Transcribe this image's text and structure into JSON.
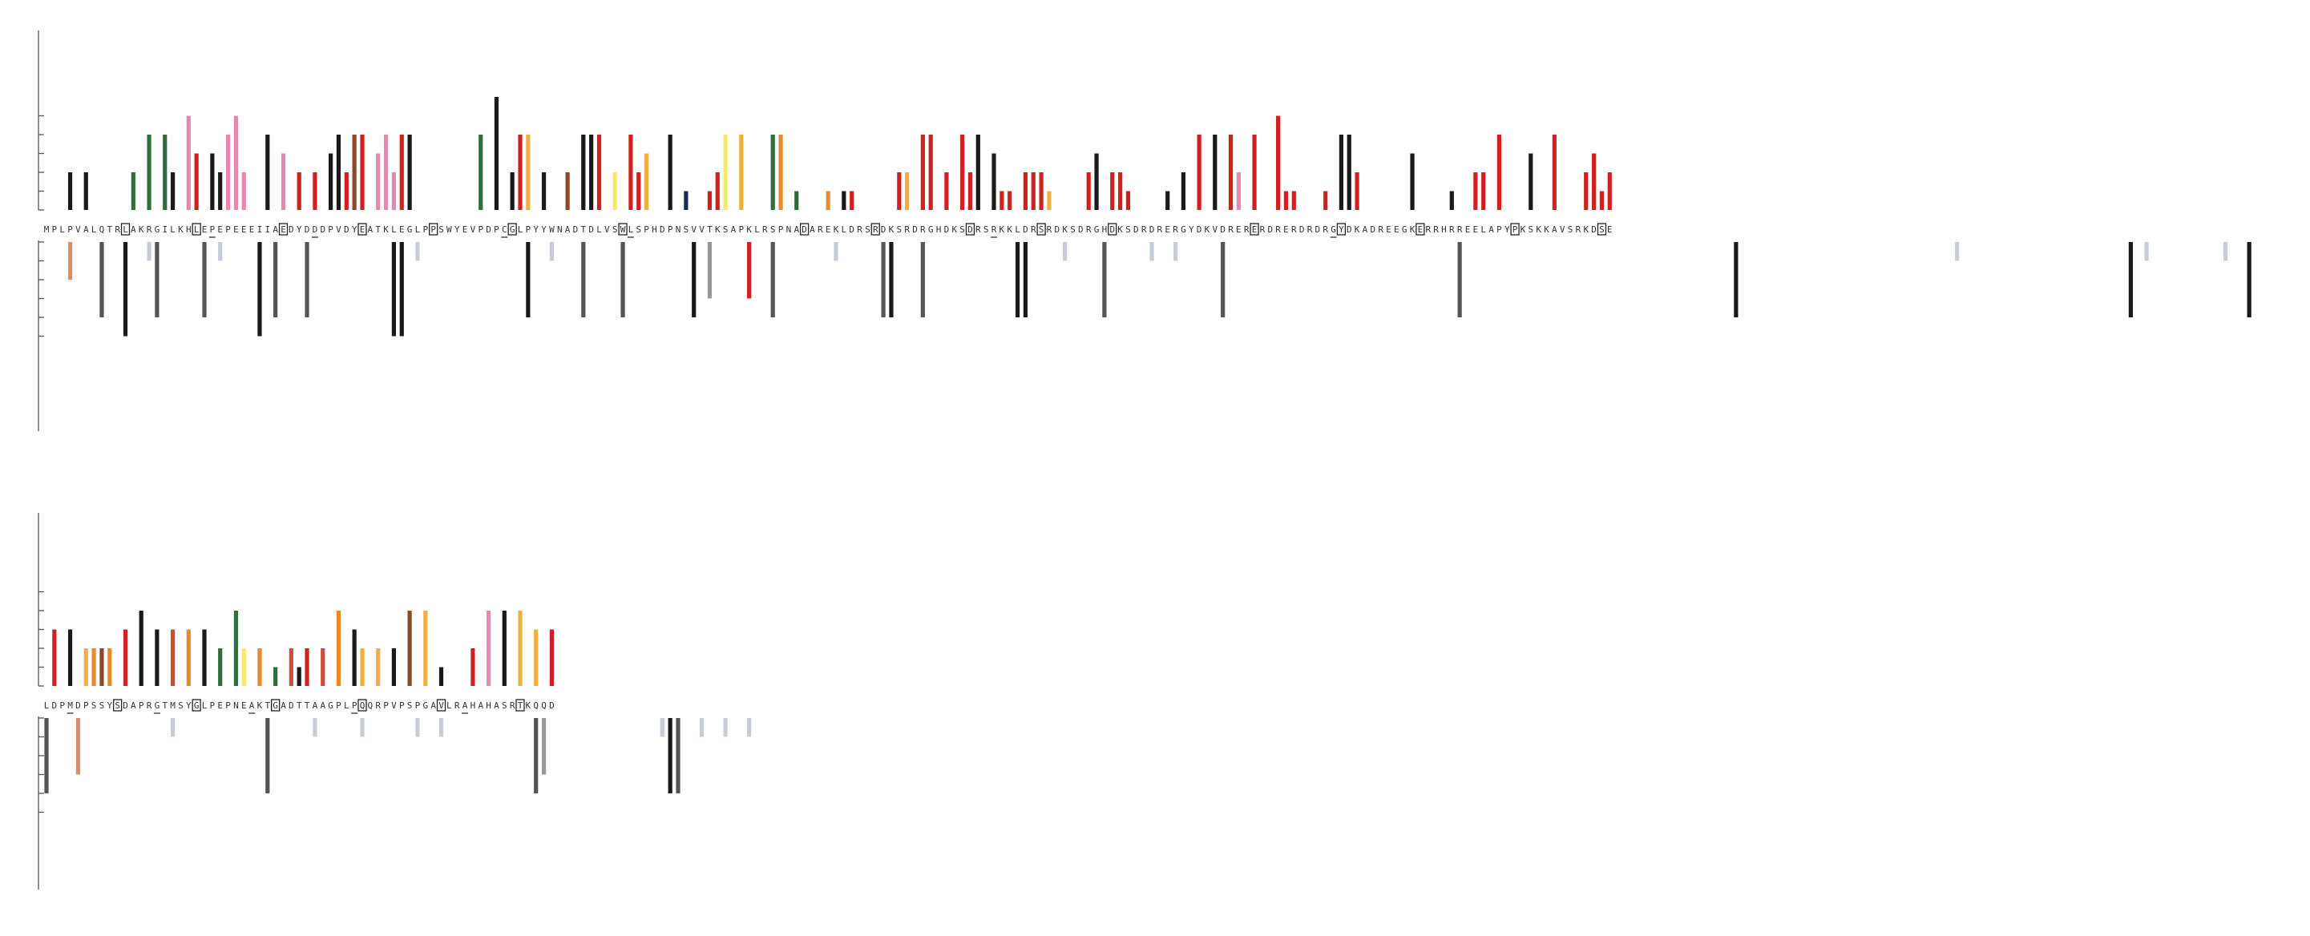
{
  "chart_data": {
    "type": "bar",
    "title": "",
    "xlabel": "",
    "ylabel": "",
    "y_axis_ticks_labeled": false,
    "top_levels": 5,
    "bottom_levels": 5,
    "palette": {
      "K": "#1a1a1a",
      "R": "#d22020",
      "G": "#2e6e3e",
      "P": "#e888b0",
      "Y": "#f3ea6a",
      "O": "#e88a2a",
      "L": "#f0b040",
      "B": "#8a4a2a",
      "N": "#1a2a5a",
      "M": "#d04a3a",
      "D": "#555555",
      "A": "#999999",
      "S": "#c8ccd8",
      "C": "#e08a70",
      "E": "#d02020",
      "X": "#ffffff"
    },
    "rows": [
      {
        "sequence": "MPLPVALQTRLAKRGILKHLEPEPEEEIIAEDYDDDPVDYEATKLEGLPPSWYEVPDPCGLPYYWNADTDLVSWLSPHDPNSVVTKSAPKLRSPNADAREKLDRSRDKSRDRGHDKSDRSRKKLDRSRDKSDRGHDKSDRDRERGYDKVDRERERDRERDRDRGYDKADREEGKERRHRREELAPYPKSKKAVSRKDSE",
        "boxed": [
          10,
          19,
          30,
          40,
          49,
          59,
          73,
          96,
          105,
          117,
          126,
          135,
          153,
          164,
          174,
          186,
          197,
          209,
          222,
          237,
          246,
          250,
          258,
          264,
          274
        ],
        "underlined": [
          21,
          34,
          58,
          74,
          120,
          163,
          212,
          249
        ],
        "top_heights": "000202000002040420530324520040302020342440342440000000040602440200204440204230040100124040004401000101100000220440204240311022210000230221000010204040420400511000104420000003000010022040003004000231201070004440103040404020002203004020000000440200000002400201000002004000400000300001000020010212000110000000000000000",
        "top_colors": "00KKKK00LOMGGGKGKGPRKKKPPPP00PPBRPRRKKRBRRPPPRKKKLBRBRGGRKRKRLKKRBBRKKRRYYRRLOKKLNKRRRYLLLOOGOGGGKOOYKRPPGGGRLRRRLRRRRKNKRRRRRRLRRRRRKKRRRRGKKKKKLRRKRRPRRYYRRRRRRRKKKRRRRRKKKKKRKKRRRRRRRKKKKKRKKPRRRRRKKKKKKKKRRRRRRRGRRRRRRGRGRGGRKKKRKKRRRRRRKKKKRKKKRPGGOLGGLGPPPRRRRRRRRRGRGLKKRMLLLLLLLLLLLLLLLLLLLLLLLLLLLLLLLLLLL",
        "bottom_bars": [
          [
            3,
            2,
            "C"
          ],
          [
            7,
            4,
            "D"
          ],
          [
            10,
            5,
            "K"
          ],
          [
            13,
            1,
            "S"
          ],
          [
            14,
            4,
            "D"
          ],
          [
            20,
            4,
            "D"
          ],
          [
            22,
            1,
            "S"
          ],
          [
            27,
            5,
            "K"
          ],
          [
            29,
            4,
            "D"
          ],
          [
            33,
            4,
            "D"
          ],
          [
            44,
            5,
            "K"
          ],
          [
            45,
            5,
            "K"
          ],
          [
            47,
            1,
            "S"
          ],
          [
            61,
            4,
            "K"
          ],
          [
            64,
            1,
            "S"
          ],
          [
            68,
            4,
            "D"
          ],
          [
            73,
            4,
            "D"
          ],
          [
            82,
            4,
            "K"
          ],
          [
            84,
            3,
            "A"
          ],
          [
            89,
            3,
            "R"
          ],
          [
            92,
            4,
            "D"
          ],
          [
            100,
            1,
            "S"
          ],
          [
            106,
            4,
            "D"
          ],
          [
            107,
            4,
            "K"
          ],
          [
            111,
            4,
            "D"
          ],
          [
            123,
            4,
            "K"
          ],
          [
            124,
            4,
            "K"
          ],
          [
            129,
            1,
            "S"
          ],
          [
            134,
            4,
            "D"
          ],
          [
            140,
            1,
            "S"
          ],
          [
            143,
            1,
            "S"
          ],
          [
            149,
            4,
            "D"
          ],
          [
            179,
            4,
            "D"
          ],
          [
            214,
            4,
            "K"
          ],
          [
            242,
            1,
            "S"
          ],
          [
            264,
            4,
            "K"
          ],
          [
            266,
            1,
            "S"
          ],
          [
            276,
            1,
            "S"
          ],
          [
            279,
            4,
            "K"
          ]
        ]
      },
      {
        "sequence": "LDPMDPSSYSDAPRGTMSYGLPEPNEAKTGADTTAAGPLPQQRPVPSPGAVLRAHAHASRTKQQD",
        "boxed": [
          9,
          19,
          29,
          40,
          50,
          60
        ],
        "underlined": [
          3,
          14,
          26,
          39,
          53
        ],
        "top_heights": "0303022220304030303030204202010212020403202020404010002040404030302020001000000000",
        "top_colors": "KRRKRLOBOLROKGKBMOOOKKGPGYPOOGKMKROMLOKKLLLLKKBKLKKKRGRYPOKOLLLRRRRRRRRRRRRRRRRRRRRRRRRR",
        "bottom_bars": [
          [
            0,
            4,
            "D"
          ],
          [
            4,
            3,
            "C"
          ],
          [
            16,
            1,
            "S"
          ],
          [
            28,
            4,
            "D"
          ],
          [
            34,
            1,
            "S"
          ],
          [
            40,
            1,
            "S"
          ],
          [
            47,
            1,
            "S"
          ],
          [
            50,
            1,
            "S"
          ],
          [
            62,
            4,
            "D"
          ],
          [
            63,
            3,
            "A"
          ],
          [
            78,
            1,
            "S"
          ],
          [
            79,
            4,
            "K"
          ],
          [
            80,
            4,
            "D"
          ],
          [
            83,
            1,
            "S"
          ],
          [
            86,
            1,
            "S"
          ],
          [
            89,
            1,
            "S"
          ]
        ]
      }
    ]
  }
}
